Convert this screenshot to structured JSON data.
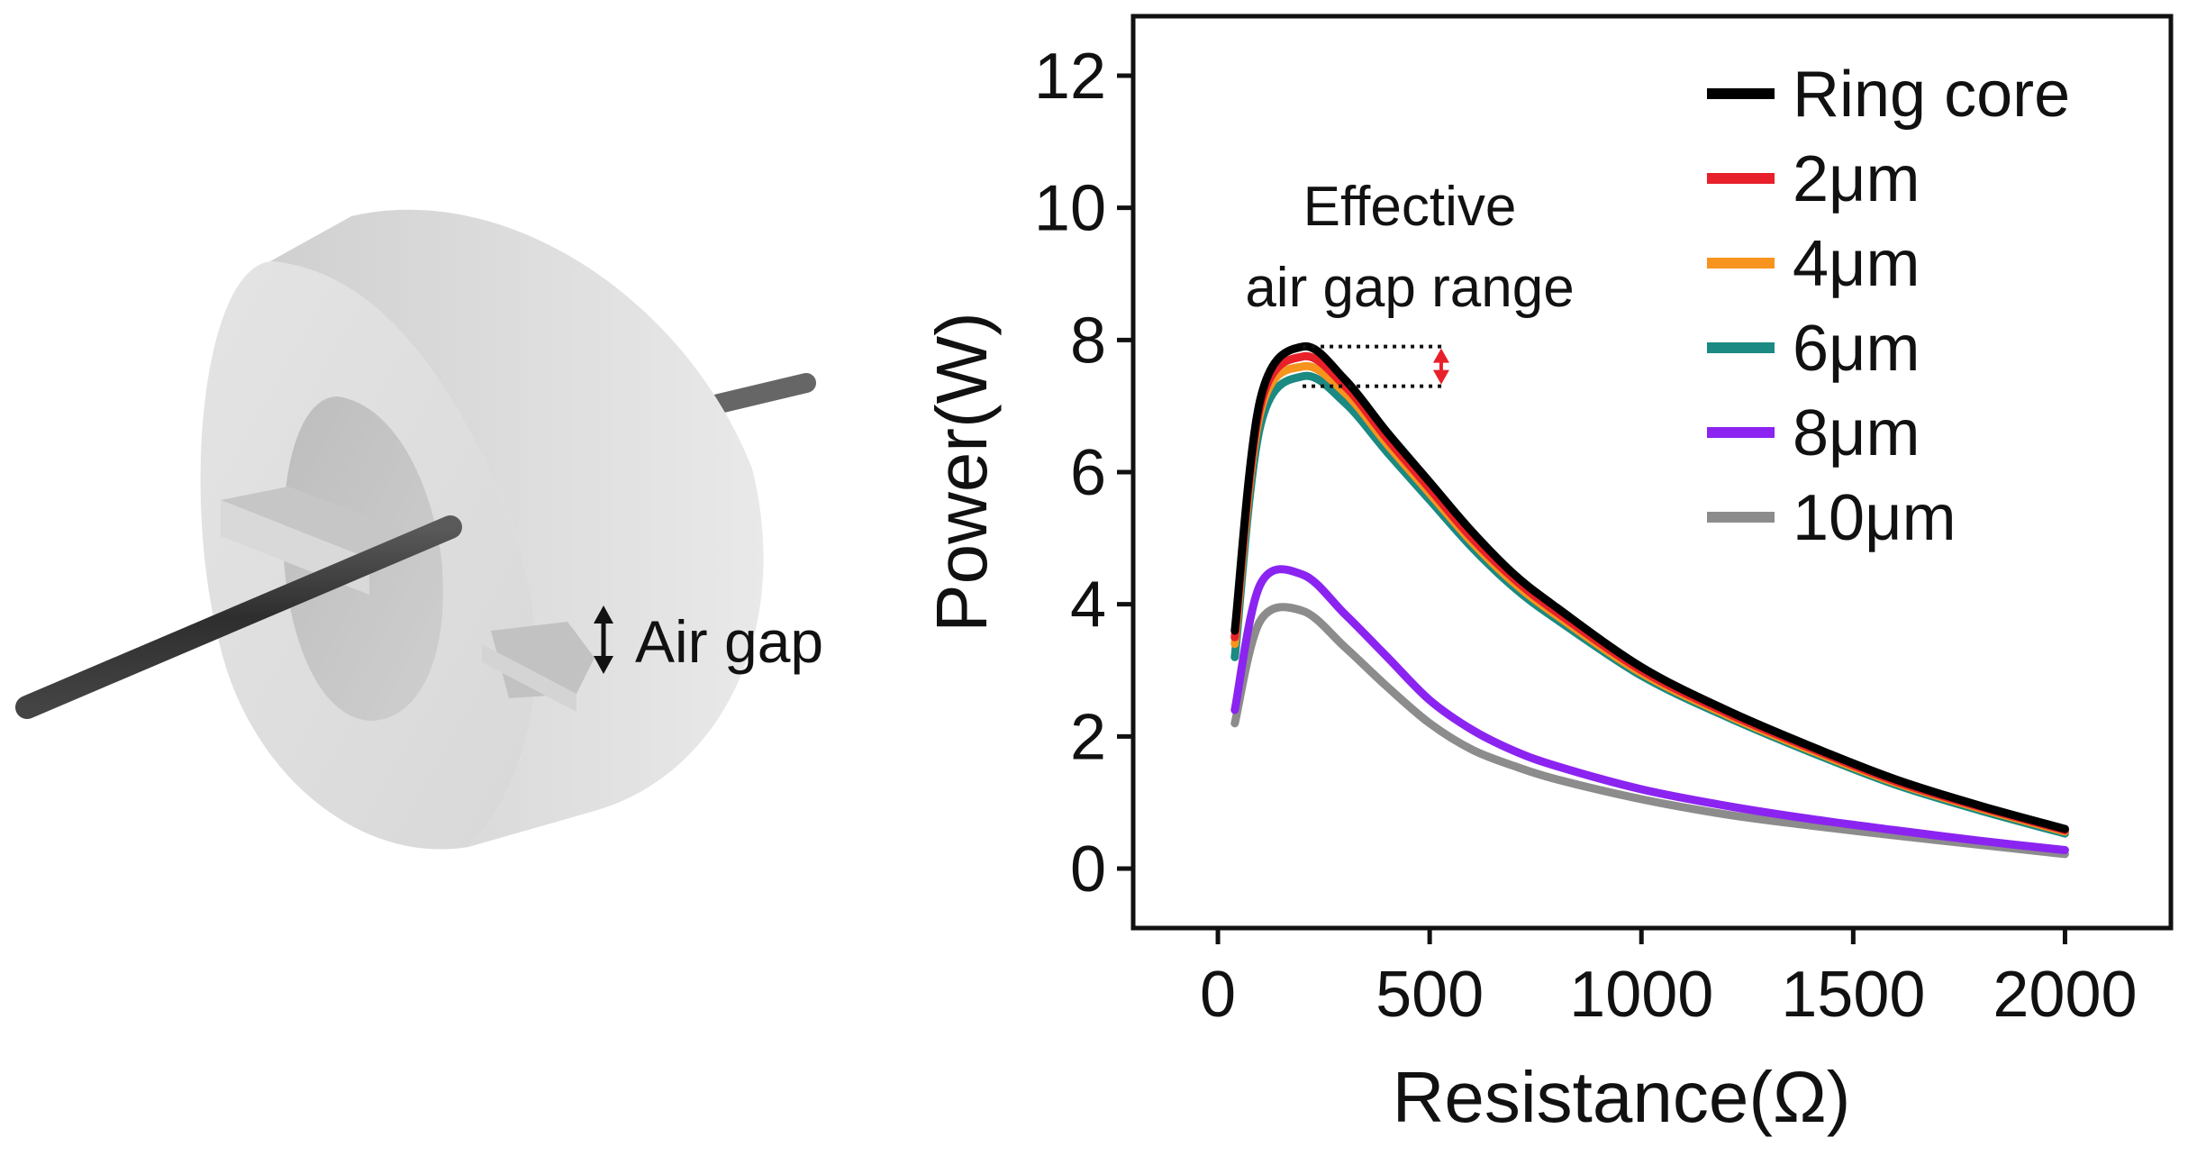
{
  "illustration": {
    "air_gap_label": "Air gap",
    "core_color": "#dcdcdc",
    "rod_color": "#3a3a3a"
  },
  "chart_data": {
    "type": "line",
    "title": "",
    "xlabel": "Resistance(Ω)",
    "ylabel": "Power(W)",
    "xlim": [
      -200,
      2250
    ],
    "ylim": [
      -0.9,
      12.9
    ],
    "xticks": [
      0,
      500,
      1000,
      1500,
      2000
    ],
    "xtick_labels": [
      "0",
      "500",
      "1000",
      "1500",
      "2000"
    ],
    "yticks": [
      0,
      2,
      4,
      6,
      8,
      10,
      12
    ],
    "ytick_labels": [
      "0",
      "2",
      "4",
      "6",
      "8",
      "10",
      "12"
    ],
    "grid": false,
    "legend_position": "top-right",
    "annotation": {
      "lines": [
        "Effective",
        "air gap range"
      ],
      "range_top": 7.9,
      "range_bottom": 7.3,
      "arrow_color": "#e8202a"
    },
    "x": [
      40,
      100,
      200,
      300,
      400,
      500,
      600,
      700,
      800,
      1000,
      1200,
      1400,
      1600,
      1800,
      2000
    ],
    "series": [
      {
        "name": "Ring core",
        "color": "#000000",
        "values": [
          3.6,
          7.1,
          7.9,
          7.4,
          6.6,
          5.85,
          5.1,
          4.45,
          3.95,
          3.05,
          2.4,
          1.85,
          1.35,
          0.95,
          0.6
        ]
      },
      {
        "name": "2μm",
        "color": "#e8202a",
        "values": [
          3.5,
          7.0,
          7.75,
          7.3,
          6.5,
          5.75,
          5.0,
          4.38,
          3.88,
          3.0,
          2.36,
          1.82,
          1.32,
          0.93,
          0.58
        ]
      },
      {
        "name": "4μm",
        "color": "#f7941d",
        "values": [
          3.4,
          6.9,
          7.6,
          7.2,
          6.42,
          5.68,
          4.94,
          4.32,
          3.83,
          2.96,
          2.33,
          1.79,
          1.3,
          0.91,
          0.56
        ]
      },
      {
        "name": "6μm",
        "color": "#1a8a82",
        "values": [
          3.2,
          6.7,
          7.45,
          7.05,
          6.3,
          5.58,
          4.86,
          4.25,
          3.77,
          2.92,
          2.3,
          1.76,
          1.27,
          0.88,
          0.53
        ]
      },
      {
        "name": "8μm",
        "color": "#8b24f0",
        "values": [
          2.4,
          4.3,
          4.45,
          3.85,
          3.2,
          2.55,
          2.1,
          1.78,
          1.55,
          1.2,
          0.95,
          0.75,
          0.58,
          0.42,
          0.28
        ]
      },
      {
        "name": "10μm",
        "color": "#8c8c8c",
        "values": [
          2.2,
          3.75,
          3.9,
          3.35,
          2.75,
          2.2,
          1.8,
          1.55,
          1.35,
          1.05,
          0.82,
          0.65,
          0.5,
          0.36,
          0.22
        ]
      }
    ]
  }
}
